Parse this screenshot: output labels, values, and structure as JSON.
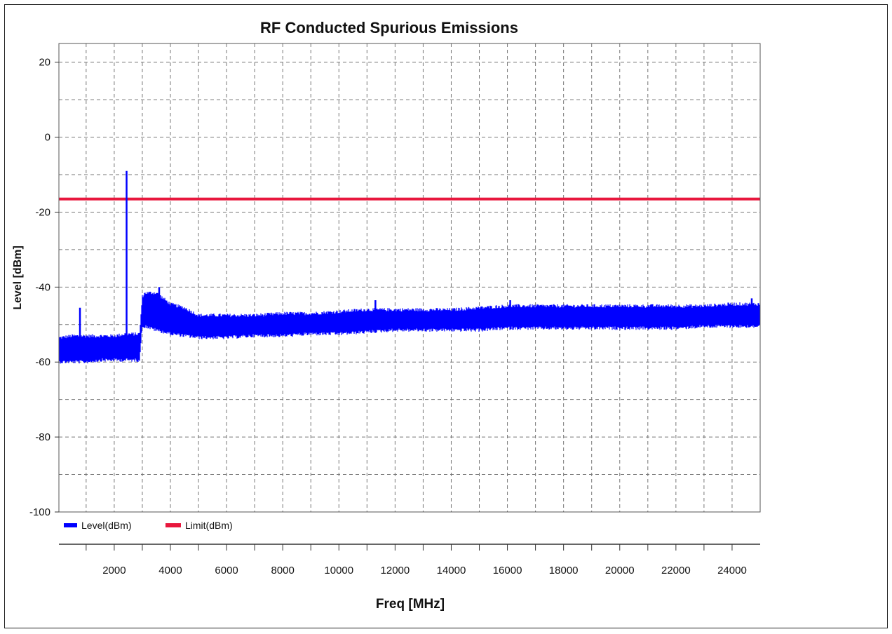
{
  "chart_data": {
    "type": "line",
    "title": "RF Conducted Spurious  Emissions",
    "xlabel": "Freq [MHz]",
    "ylabel": "Level  [dBm]",
    "xlim": [
      30,
      25000
    ],
    "ylim": [
      -100,
      25
    ],
    "x_ticks": [
      2000,
      4000,
      6000,
      8000,
      10000,
      12000,
      14000,
      16000,
      18000,
      20000,
      22000,
      24000
    ],
    "y_ticks": [
      20,
      0,
      -20,
      -40,
      -60,
      -80,
      -100
    ],
    "grid": true,
    "legend_position": "bottom-left",
    "series": [
      {
        "name": "Level(dBm)",
        "color": "#0000ff",
        "style": "noise-band",
        "x": [
          30,
          500,
          1000,
          1500,
          2000,
          2400,
          2900,
          3000,
          3100,
          3500,
          4000,
          4500,
          5000,
          6000,
          7000,
          8000,
          9000,
          10000,
          11000,
          12000,
          13000,
          14000,
          15000,
          16000,
          17000,
          18000,
          19000,
          20000,
          21000,
          22000,
          23000,
          24000,
          25000
        ],
        "upper": [
          -54,
          -53.5,
          -53.5,
          -53.5,
          -53.5,
          -53,
          -53,
          -43,
          -42,
          -42,
          -45,
          -46,
          -48,
          -48,
          -48,
          -47.5,
          -47.5,
          -47,
          -46.5,
          -46.5,
          -46.5,
          -46.5,
          -46,
          -45.5,
          -45.5,
          -45.5,
          -45.5,
          -45.5,
          -45.5,
          -45.5,
          -45.5,
          -45,
          -45
        ],
        "lower": [
          -59.5,
          -59.5,
          -59.5,
          -59,
          -59,
          -59,
          -59,
          -50,
          -50,
          -51,
          -52,
          -52.5,
          -53,
          -53,
          -52.5,
          -52.5,
          -52,
          -52,
          -51.5,
          -51,
          -51,
          -51,
          -51,
          -50.5,
          -50.5,
          -50.5,
          -50.5,
          -50.5,
          -50.5,
          -50.5,
          -50,
          -50,
          -50
        ],
        "spikes": [
          {
            "x": 780,
            "y": -45.5
          },
          {
            "x": 2440,
            "y": -9
          },
          {
            "x": 3600,
            "y": -40
          },
          {
            "x": 11300,
            "y": -43.5
          },
          {
            "x": 16100,
            "y": -43.5
          },
          {
            "x": 24700,
            "y": -43
          }
        ]
      },
      {
        "name": "Limit(dBm)",
        "color": "#e8173d",
        "x": [
          30,
          25000
        ],
        "y": [
          -16.5,
          -16.5
        ]
      }
    ]
  }
}
